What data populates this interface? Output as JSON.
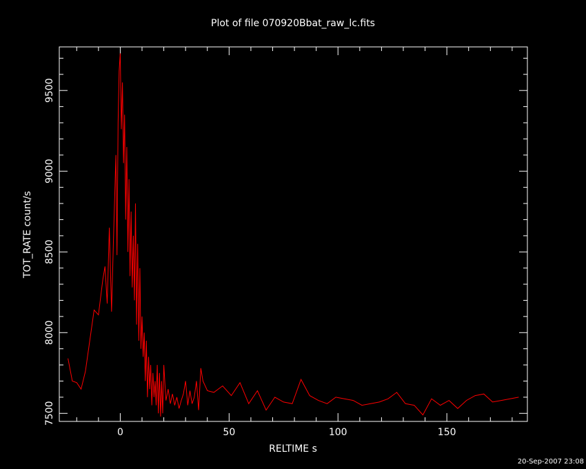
{
  "chart_data": {
    "type": "line",
    "title": "Plot of file 070920Bbat_raw_lc.fits",
    "xlabel": "RELTIME  s",
    "ylabel": "TOT_RATE  count/s",
    "timestamp": "20-Sep-2007 23:08",
    "xlim": [
      -28,
      187
    ],
    "ylim": [
      7450,
      9770
    ],
    "xticks": [
      0,
      50,
      100,
      150
    ],
    "yticks": [
      7500,
      8000,
      8500,
      9000,
      9500
    ],
    "grid": false,
    "series": [
      {
        "color": "#ff0000",
        "x": [
          -24,
          -22,
          -20,
          -18,
          -16,
          -14,
          -12,
          -10,
          -8,
          -7,
          -6,
          -5,
          -4,
          -3,
          -2,
          -1.5,
          -1,
          -0.5,
          0,
          0.5,
          1,
          1.5,
          2,
          2.5,
          3,
          3.5,
          4,
          4.5,
          5,
          5.5,
          6,
          6.5,
          7,
          7.5,
          8,
          8.5,
          9,
          9.5,
          10,
          10.5,
          11,
          11.5,
          12,
          12.5,
          13,
          13.5,
          14,
          14.5,
          15,
          15.5,
          16,
          16.5,
          17,
          17.5,
          18,
          18.5,
          19,
          19.5,
          20,
          21,
          22,
          23,
          24,
          25,
          26,
          27,
          28,
          29,
          30,
          31,
          32,
          33,
          34,
          35,
          36,
          37,
          38,
          40,
          43,
          47,
          51,
          55,
          59,
          63,
          67,
          71,
          75,
          79,
          83,
          87,
          91,
          95,
          99,
          103,
          107,
          111,
          115,
          119,
          123,
          127,
          131,
          135,
          139,
          143,
          147,
          151,
          155,
          159,
          163,
          167,
          171,
          175,
          179,
          183
        ],
        "y": [
          7840,
          7700,
          7690,
          7650,
          7760,
          7950,
          8140,
          8110,
          8330,
          8410,
          8180,
          8650,
          8130,
          8640,
          9100,
          8480,
          9300,
          9620,
          9730,
          9260,
          9550,
          9050,
          9350,
          8700,
          9150,
          8500,
          8950,
          8350,
          8750,
          8280,
          8600,
          8200,
          8800,
          8050,
          8550,
          7950,
          8400,
          7900,
          8100,
          7850,
          8000,
          7700,
          7950,
          7600,
          7850,
          7650,
          7800,
          7550,
          7750,
          7600,
          7700,
          7550,
          7800,
          7500,
          7750,
          7480,
          7700,
          7500,
          7800,
          7580,
          7650,
          7560,
          7620,
          7550,
          7600,
          7530,
          7580,
          7620,
          7700,
          7550,
          7640,
          7560,
          7600,
          7700,
          7520,
          7780,
          7700,
          7640,
          7630,
          7670,
          7610,
          7690,
          7560,
          7640,
          7520,
          7600,
          7570,
          7560,
          7710,
          7610,
          7580,
          7560,
          7600,
          7590,
          7580,
          7550,
          7560,
          7570,
          7590,
          7630,
          7560,
          7550,
          7490,
          7590,
          7550,
          7580,
          7530,
          7580,
          7610,
          7620,
          7570,
          7580,
          7590,
          7600
        ]
      }
    ]
  }
}
